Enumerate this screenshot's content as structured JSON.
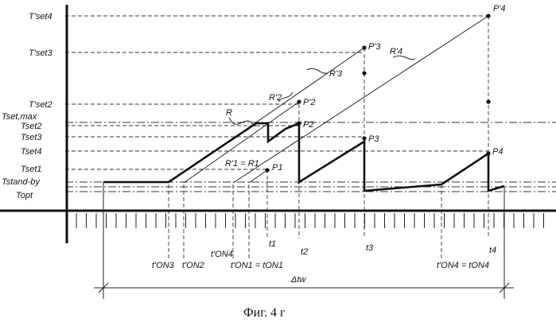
{
  "figure": {
    "caption": "Фиг. 4 г",
    "y_labels": {
      "tset4p": "T'set4",
      "tset3p": "T'set3",
      "tset2p": "T'set2",
      "tsetmax": "Tset,max",
      "tset2": "Tset2",
      "tset3": "Tset3",
      "tset4": "Tset4",
      "tset1": "Tset1",
      "tstandby": "Tstand-by",
      "topt": "Topt"
    },
    "points": {
      "p4p": "P'4",
      "p3p": "P'3",
      "p2p": "P'2",
      "p2": "P2",
      "p3": "P3",
      "p4": "P4",
      "p1": "P1"
    },
    "curves": {
      "r": "R",
      "r3p": "R'3",
      "r4p": "R'4",
      "r2p": "R'2",
      "r1eq": "R'1 = R1"
    },
    "x_labels": {
      "ton3p": "t'ON3",
      "ton2p": "t'ON2",
      "ton4p": "t'ON4",
      "ton1eq": "t'ON1 = tON1",
      "t1": "t1",
      "t2": "t2",
      "t3": "t3",
      "t4": "t4",
      "ton4eq": "t'ON4 = tON4",
      "dtw": "Δtw"
    }
  }
}
